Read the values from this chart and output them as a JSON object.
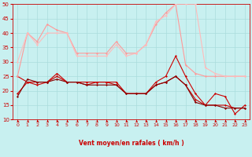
{
  "title": "",
  "xlabel": "Vent moyen/en rafales ( km/h )",
  "ylabel": "",
  "xlim": [
    -0.5,
    23.5
  ],
  "ylim": [
    10,
    50
  ],
  "yticks": [
    10,
    15,
    20,
    25,
    30,
    35,
    40,
    45,
    50
  ],
  "xticks": [
    0,
    1,
    2,
    3,
    4,
    5,
    6,
    7,
    8,
    9,
    10,
    11,
    12,
    13,
    14,
    15,
    16,
    17,
    18,
    19,
    20,
    21,
    22,
    23
  ],
  "background_color": "#c8f0f0",
  "grid_color": "#aadddd",
  "series": [
    {
      "x": [
        0,
        1,
        2,
        3,
        4,
        5,
        6,
        7,
        8,
        9,
        10,
        11,
        12,
        13,
        14,
        15,
        16,
        17,
        18,
        19,
        20,
        21,
        22,
        23
      ],
      "y": [
        25,
        23,
        23,
        23,
        25,
        23,
        23,
        23,
        23,
        23,
        23,
        19,
        19,
        19,
        23,
        25,
        32,
        25,
        19,
        15,
        19,
        18,
        12,
        15
      ],
      "color": "#cc0000",
      "lw": 0.8,
      "marker": "D",
      "ms": 1.5,
      "alpha": 1.0
    },
    {
      "x": [
        0,
        1,
        2,
        3,
        4,
        5,
        6,
        7,
        8,
        9,
        10,
        11,
        12,
        13,
        14,
        15,
        16,
        17,
        18,
        19,
        20,
        21,
        22,
        23
      ],
      "y": [
        19,
        23,
        22,
        23,
        26,
        23,
        23,
        22,
        23,
        23,
        22,
        19,
        19,
        19,
        22,
        23,
        25,
        22,
        17,
        15,
        15,
        15,
        14,
        14
      ],
      "color": "#cc0000",
      "lw": 0.8,
      "marker": "D",
      "ms": 1.5,
      "alpha": 1.0
    },
    {
      "x": [
        0,
        1,
        2,
        3,
        4,
        5,
        6,
        7,
        8,
        9,
        10,
        11,
        12,
        13,
        14,
        15,
        16,
        17,
        18,
        19,
        20,
        21,
        22,
        23
      ],
      "y": [
        18,
        24,
        23,
        23,
        24,
        23,
        23,
        22,
        22,
        22,
        22,
        19,
        19,
        19,
        22,
        23,
        25,
        22,
        16,
        15,
        15,
        14,
        14,
        14
      ],
      "color": "#880000",
      "lw": 0.8,
      "marker": "D",
      "ms": 1.5,
      "alpha": 1.0
    },
    {
      "x": [
        0,
        1,
        2,
        3,
        4,
        5,
        6,
        7,
        8,
        9,
        10,
        11,
        12,
        13,
        14,
        15,
        16,
        17,
        18,
        19,
        20,
        21,
        22,
        23
      ],
      "y": [
        25,
        40,
        37,
        43,
        41,
        40,
        33,
        33,
        33,
        33,
        37,
        33,
        33,
        36,
        43,
        47,
        50,
        29,
        26,
        25,
        25,
        25,
        25,
        25
      ],
      "color": "#ff9999",
      "lw": 0.8,
      "marker": "D",
      "ms": 1.5,
      "alpha": 1.0
    },
    {
      "x": [
        0,
        1,
        2,
        3,
        4,
        5,
        6,
        7,
        8,
        9,
        10,
        11,
        12,
        13,
        14,
        15,
        16,
        17,
        18,
        19,
        20,
        21,
        22,
        23
      ],
      "y": [
        30,
        40,
        36,
        40,
        40,
        40,
        32,
        32,
        32,
        32,
        36,
        32,
        33,
        36,
        44,
        46,
        50,
        50,
        50,
        28,
        26,
        25,
        25,
        25
      ],
      "color": "#ffbbbb",
      "lw": 0.8,
      "marker": "D",
      "ms": 1.5,
      "alpha": 1.0
    }
  ],
  "arrow_color": "#cc0000",
  "font_color": "#cc0000"
}
